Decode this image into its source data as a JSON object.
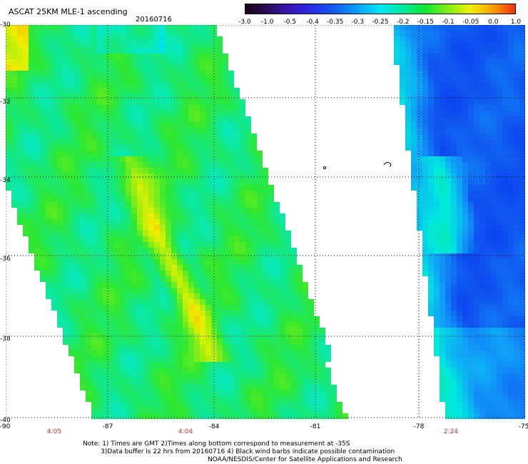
{
  "header": {
    "title": "ASCAT 25KM MLE-1 ascending",
    "date": "20160716"
  },
  "colorbar": {
    "labels": [
      "-3.0",
      "-1.0",
      "-0.5",
      "-0.4",
      "-0.35",
      "-0.3",
      "-0.25",
      "-0.2",
      "-0.15",
      "-0.1",
      "-0.05",
      "0.0",
      "1.0"
    ],
    "colors": [
      "#1a0010",
      "#2a0d5c",
      "#3a16b8",
      "#2330e8",
      "#1460f0",
      "#0aa0f8",
      "#00e8f0",
      "#00e8a0",
      "#10e830",
      "#80ee10",
      "#f0f000",
      "#f8a000",
      "#f03010"
    ]
  },
  "map": {
    "y_ticks": [
      "-30",
      "-32",
      "-34",
      "-36",
      "-38",
      "-40"
    ],
    "x_ticks": [
      "-90",
      "-87",
      "-84",
      "-81",
      "-78",
      "-75"
    ],
    "swath_times": [
      "4:05",
      "4:04",
      "2:24"
    ]
  },
  "notes": {
    "line1": "Note: 1) Times are GMT 2)Times along bottom correspond to measurement at -35S",
    "line2": "3)Data buffer is 22 hrs from 20160716 4) Black wind barbs indicate possible contamination",
    "line3": "NOAA/NESDIS/Center for Satellite Applications and Research"
  }
}
